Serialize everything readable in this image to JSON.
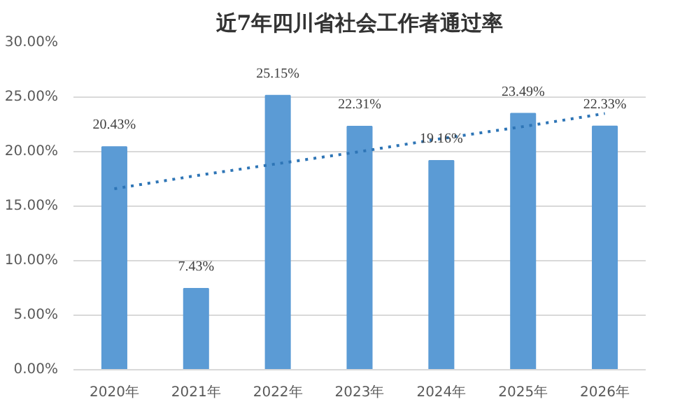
{
  "chart_data": {
    "type": "bar",
    "title": "近7年四川省社会工作者通过率",
    "categories": [
      "2020年",
      "2021年",
      "2022年",
      "2023年",
      "2024年",
      "2025年",
      "2026年"
    ],
    "series": [
      {
        "color": "#5b9bd5",
        "values": [
          20.43,
          7.43,
          25.15,
          22.31,
          19.16,
          23.49,
          22.33
        ],
        "value_labels": [
          "20.43%",
          "7.43%",
          "25.15%",
          "22.31%",
          "19.16%",
          "23.49%",
          "22.33%"
        ]
      },
      {
        "type": "line",
        "color": "#2e75b6",
        "line_style": "dotted",
        "values": [
          16.6,
          17.8,
          18.9,
          20.0,
          21.2,
          22.3,
          23.5
        ]
      }
    ],
    "ylim": [
      0,
      30
    ],
    "yticks": [
      {
        "value": 0,
        "label": "0.00%"
      },
      {
        "value": 5,
        "label": "5.00%"
      },
      {
        "value": 10,
        "label": "10.00%"
      },
      {
        "value": 15,
        "label": "15.00%"
      },
      {
        "value": 20,
        "label": "20.00%"
      },
      {
        "value": 25,
        "label": "25.00%"
      },
      {
        "value": 30,
        "label": "30.00%"
      }
    ],
    "grid": "y"
  }
}
